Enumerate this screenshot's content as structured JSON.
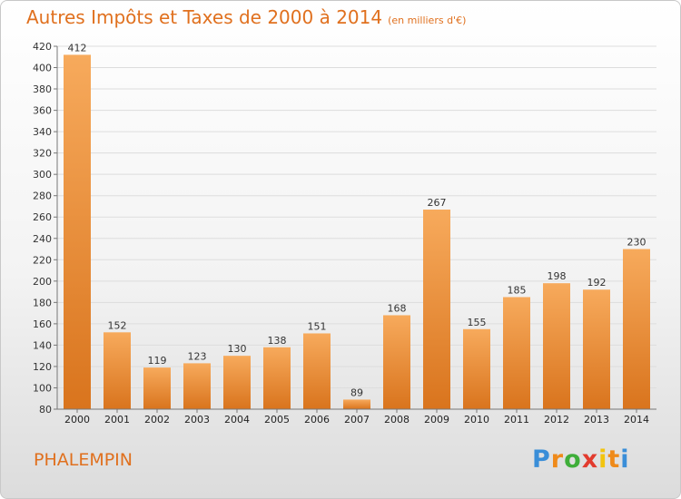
{
  "header": {
    "title": "Autres Impôts et Taxes de 2000 à 2014",
    "subtitle": "(en milliers d'€)"
  },
  "footer": {
    "place": "PHALEMPIN",
    "logo_letters": [
      "P",
      "r",
      "o",
      "x",
      "i",
      "t",
      "i"
    ]
  },
  "colors": {
    "title": "#e0701e",
    "bar_top": "#f7aa5c",
    "bar_bottom": "#d9741d",
    "grid": "#dddddd",
    "axis": "#777777"
  },
  "chart_data": {
    "type": "bar",
    "title": "Autres Impôts et Taxes de 2000 à 2014",
    "subtitle": "(en milliers d'€)",
    "categories": [
      "2000",
      "2001",
      "2002",
      "2003",
      "2004",
      "2005",
      "2006",
      "2007",
      "2008",
      "2009",
      "2010",
      "2011",
      "2012",
      "2013",
      "2014"
    ],
    "values": [
      412,
      152,
      119,
      123,
      130,
      138,
      151,
      89,
      168,
      267,
      155,
      185,
      198,
      192,
      230
    ],
    "ylim": [
      80,
      420
    ],
    "yticks": [
      80,
      100,
      120,
      140,
      160,
      180,
      200,
      220,
      240,
      260,
      280,
      300,
      320,
      340,
      360,
      380,
      400,
      420
    ],
    "grid": true,
    "data_labels": true
  }
}
